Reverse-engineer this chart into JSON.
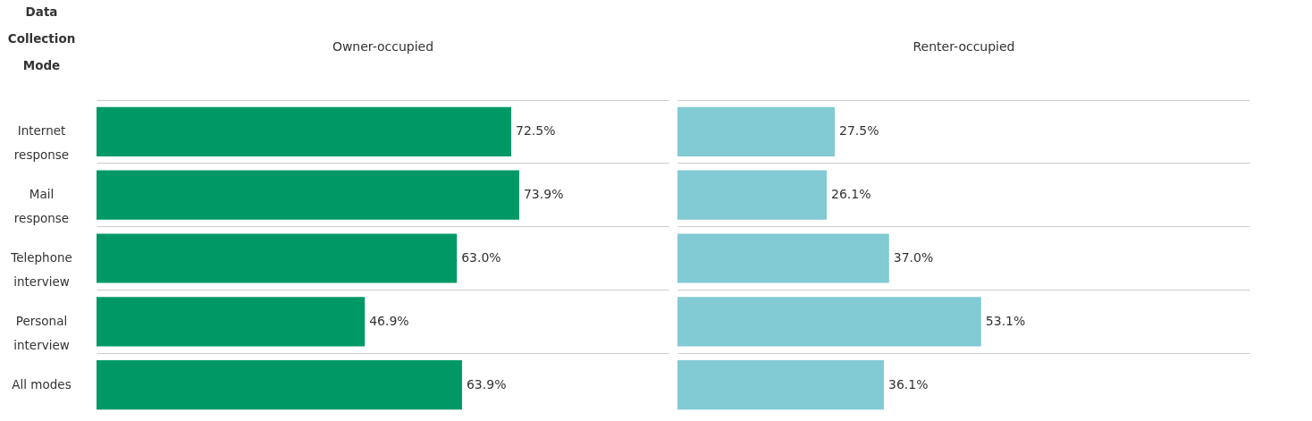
{
  "chart_data": [
    {
      "type": "bar",
      "orientation": "horizontal",
      "title": "Owner-occupied",
      "ylabel": "Data Collection Mode",
      "categories": [
        "Internet response",
        "Mail response",
        "Telephone interview",
        "Personal interview",
        "All modes"
      ],
      "values": [
        72.5,
        73.9,
        63.0,
        46.9,
        63.9
      ],
      "value_labels": [
        "72.5%",
        "73.9%",
        "63.0%",
        "46.9%",
        "63.9%"
      ],
      "color": "#009966",
      "xlim": [
        0,
        100
      ],
      "grid": "y",
      "tick_labels": "y"
    },
    {
      "type": "bar",
      "orientation": "horizontal",
      "title": "Renter-occupied",
      "categories": [
        null,
        null,
        null,
        null,
        null
      ],
      "values": [
        27.5,
        26.1,
        37.0,
        53.1,
        36.1
      ],
      "value_labels": [
        "27.5%",
        "26.1%",
        "37.0%",
        "53.1%",
        "36.1%"
      ],
      "color": "#82cad4",
      "xlim": [
        0,
        100
      ],
      "grid": "y",
      "tick_labels": false
    }
  ]
}
